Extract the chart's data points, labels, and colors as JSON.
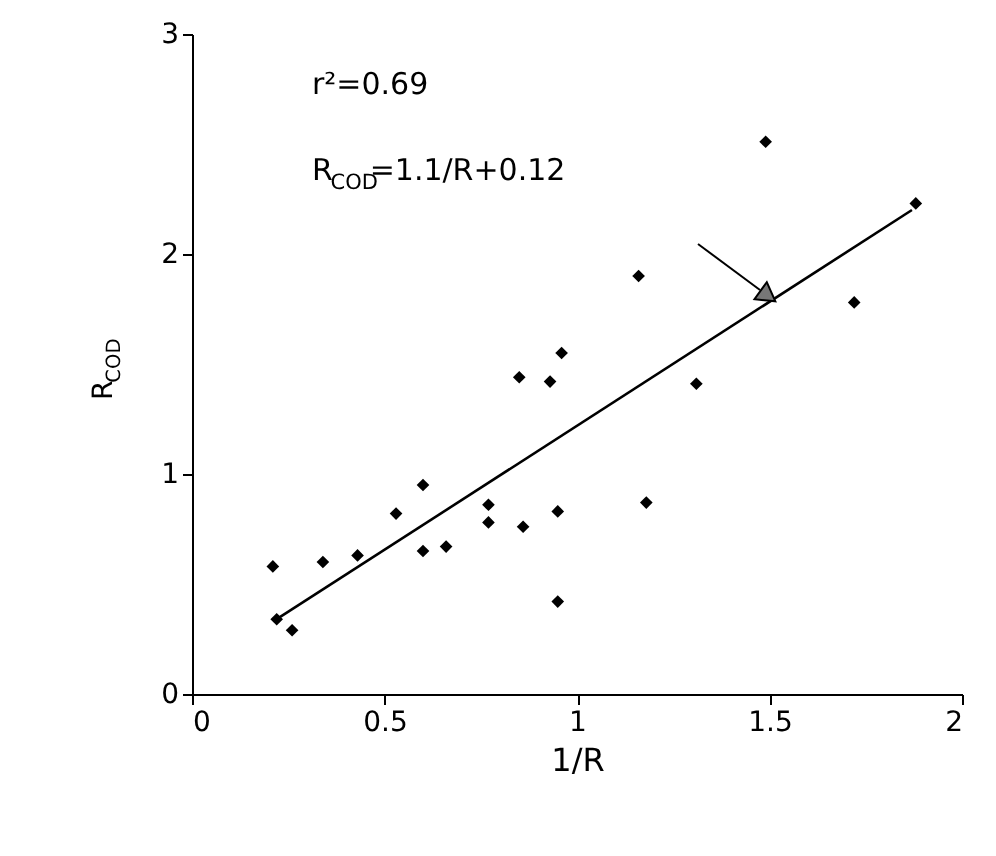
{
  "chart_data": {
    "type": "scatter",
    "xlabel": "1/R",
    "ylabel": "R$_{COD}$",
    "xlim": [
      0,
      2
    ],
    "ylim": [
      0,
      3
    ],
    "xticks": [
      0,
      0.5,
      1,
      1.5,
      2
    ],
    "yticks": [
      0,
      1,
      2,
      3
    ],
    "grid": false,
    "annotations": [
      "r²=0.69",
      "R$_{COD}$=1.1/R+0.12"
    ],
    "series": [
      {
        "color": "#000000",
        "marker": "diamond",
        "x": [
          0.21,
          0.22,
          0.26,
          0.34,
          0.43,
          0.53,
          0.6,
          0.6,
          0.66,
          0.77,
          0.77,
          0.85,
          0.86,
          0.93,
          0.95,
          0.95,
          0.96,
          1.18,
          1.16,
          1.31,
          1.49,
          1.72,
          1.88
        ],
        "values": [
          0.58,
          0.34,
          0.29,
          0.6,
          0.63,
          0.82,
          0.95,
          0.65,
          0.67,
          0.86,
          0.78,
          1.44,
          0.76,
          1.42,
          0.83,
          0.42,
          1.55,
          0.87,
          1.9,
          1.41,
          2.51,
          1.78,
          2.23
        ]
      },
      {
        "type": "line",
        "color": "#000000",
        "marker": "none",
        "x": [
          0.22,
          1.87
        ],
        "values": [
          0.34,
          2.2
        ]
      }
    ]
  }
}
